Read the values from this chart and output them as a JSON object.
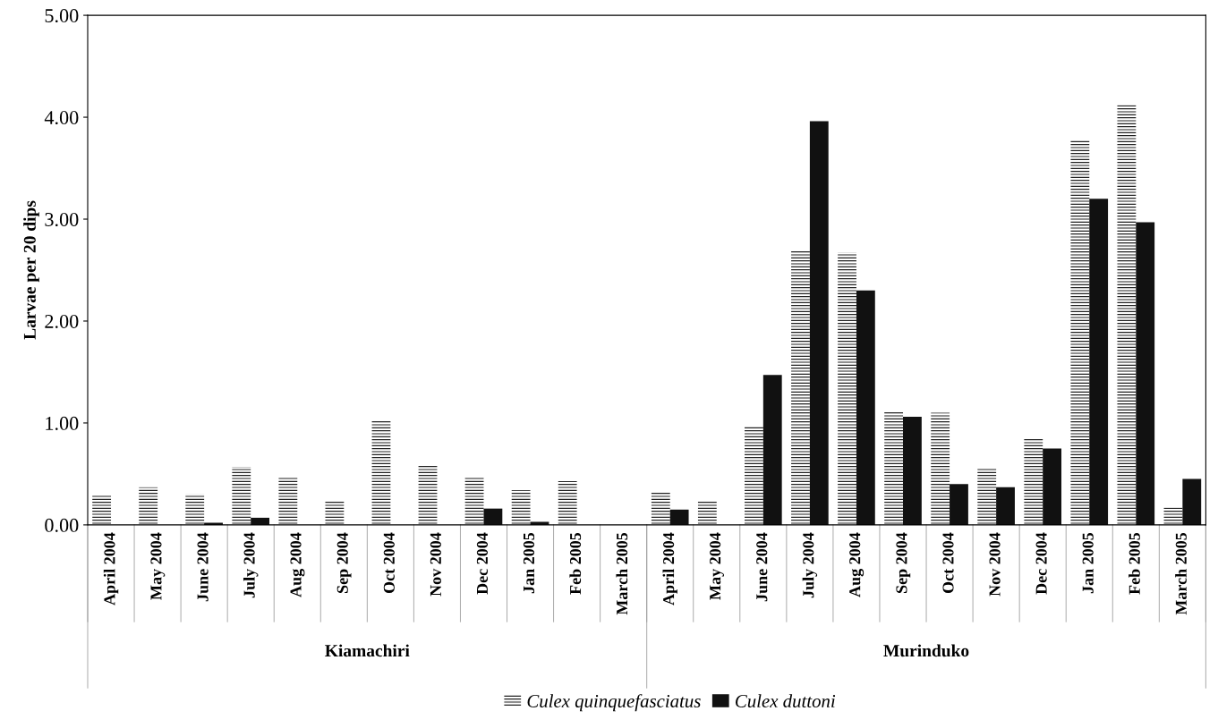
{
  "chart_data": {
    "type": "bar",
    "ylabel": "Larvae per 20 dips",
    "categories": [
      "April 2004",
      "May 2004",
      "June 2004",
      "July 2004",
      "Aug 2004",
      "Sep 2004",
      "Oct 2004",
      "Nov 2004",
      "Dec 2004",
      "Jan 2005",
      "Feb 2005",
      "March 2005",
      "April 2004",
      "May 2004",
      "June 2004",
      "July 2004",
      "Aug 2004",
      "Sep 2004",
      "Oct 2004",
      "Nov 2004",
      "Dec 2004",
      "Jan 2005",
      "Feb 2005",
      "March 2005"
    ],
    "series": [
      {
        "name": "Culex quinquefasciatus",
        "color": "#ffffff",
        "values": [
          0.29,
          0.37,
          0.3,
          0.57,
          0.47,
          0.24,
          1.02,
          0.58,
          0.47,
          0.34,
          0.43,
          0,
          0.32,
          0.23,
          0.97,
          2.69,
          2.67,
          1.12,
          1.1,
          0.56,
          0.85,
          3.78,
          4.12,
          0.17
        ]
      },
      {
        "name": "Culex duttoni",
        "color": "#111111",
        "values": [
          0,
          0,
          0.02,
          0.07,
          0,
          0,
          0,
          0,
          0.16,
          0.03,
          0,
          0,
          0.15,
          0,
          1.47,
          3.96,
          2.3,
          1.06,
          0.4,
          0.37,
          0.75,
          3.2,
          2.97,
          0.45
        ]
      }
    ],
    "annotations": [
      "Kiamachiri",
      "Murinduko"
    ],
    "ylim": [
      0,
      5
    ],
    "yticks": [
      {
        "value": 0,
        "label": "0.00"
      },
      {
        "value": 1,
        "label": "1.00"
      },
      {
        "value": 2,
        "label": "2.00"
      },
      {
        "value": 3,
        "label": "3.00"
      },
      {
        "value": 4,
        "label": "4.00"
      },
      {
        "value": 5,
        "label": "5.00"
      }
    ],
    "grid": false,
    "legend": "bottom"
  }
}
